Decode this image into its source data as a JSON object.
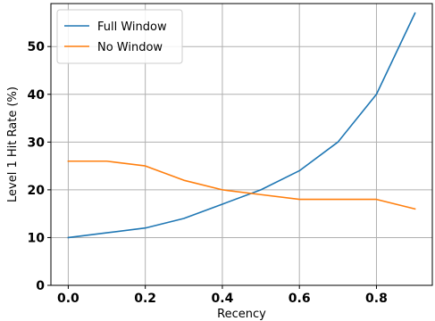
{
  "chart_data": {
    "type": "line",
    "title": "",
    "xlabel": "Recency",
    "ylabel": "Level 1 Hit Rate (%)",
    "x": [
      0.0,
      0.1,
      0.2,
      0.3,
      0.4,
      0.5,
      0.6,
      0.7,
      0.8,
      0.9
    ],
    "xlim": [
      -0.045,
      0.945
    ],
    "ylim": [
      0,
      59
    ],
    "xticks": [
      0.0,
      0.2,
      0.4,
      0.6,
      0.8
    ],
    "xtick_labels": [
      "0.0",
      "0.2",
      "0.4",
      "0.6",
      "0.8"
    ],
    "yticks": [
      0,
      10,
      20,
      30,
      40,
      50
    ],
    "ytick_labels": [
      "0",
      "10",
      "20",
      "30",
      "40",
      "50"
    ],
    "grid": true,
    "legend_position": "top-left",
    "series": [
      {
        "name": "Full Window",
        "color": "#1f77b4",
        "values": [
          10,
          11,
          12,
          14,
          17,
          20,
          24,
          30,
          40,
          57
        ]
      },
      {
        "name": "No Window",
        "color": "#ff7f0e",
        "values": [
          26,
          26,
          25,
          22,
          20,
          19,
          18,
          18,
          18,
          16
        ]
      }
    ]
  }
}
